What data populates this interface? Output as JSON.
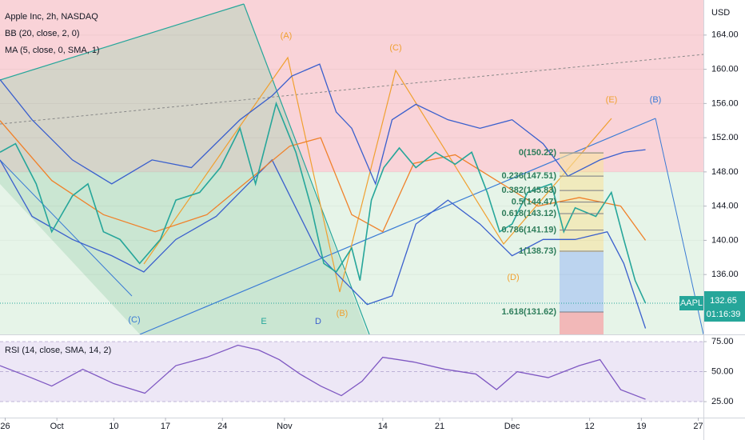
{
  "chart_data": [
    {
      "type": "line",
      "title": "Apple Inc, 2h, NASDAQ",
      "legend": [
        "BB (20, close, 2, 0)",
        "MA (5, close, 0, SMA, 1)"
      ],
      "currency": "USD",
      "ylim": [
        129,
        168.1
      ],
      "xlim": [
        0,
        68
      ],
      "yticks": [
        {
          "value": 136,
          "label": "136.00"
        },
        {
          "value": 140,
          "label": "140.00"
        },
        {
          "value": 144,
          "label": "144.00"
        },
        {
          "value": 148,
          "label": "148.00"
        },
        {
          "value": 152,
          "label": "152.00"
        },
        {
          "value": 156,
          "label": "156.00"
        },
        {
          "value": 160,
          "label": "160.00"
        },
        {
          "value": 164,
          "label": "164.00"
        }
      ],
      "series": [
        {
          "color": "#3a5fcd",
          "x": [
            0,
            3.1,
            7,
            10.8,
            14.7,
            18.5,
            23.2,
            26.3,
            28.2,
            30.9,
            32.5,
            34,
            36.3,
            37.9,
            40.2,
            43.3,
            46.4,
            49.5,
            52.5,
            54.9,
            58,
            60.3,
            62.4
          ],
          "values": [
            158.8,
            154.1,
            149.4,
            146.6,
            149.4,
            148.5,
            154.1,
            156.9,
            159.2,
            160.6,
            155.0,
            153.1,
            146.6,
            154.1,
            155.9,
            154.1,
            153.1,
            154.1,
            151.3,
            147.5,
            149.4,
            150.3,
            150.6
          ]
        },
        {
          "color": "#3a5fcd",
          "x": [
            0,
            3.1,
            7,
            10.8,
            13.9,
            17,
            20.9,
            24,
            26.3,
            28.6,
            30.9,
            33.2,
            35.5,
            37.9,
            40.2,
            43.3,
            46.4,
            49.5,
            52.5,
            55.6,
            58.7,
            60.3,
            62.4
          ],
          "values": [
            149.4,
            142.8,
            140.1,
            138.2,
            136.3,
            140.1,
            142.8,
            146.6,
            149.4,
            143.8,
            138.2,
            135.3,
            132.5,
            133.5,
            141.9,
            144.7,
            141.9,
            138.2,
            140.1,
            140.1,
            141.0,
            137.3,
            129.7
          ]
        },
        {
          "color": "#f0812a",
          "x": [
            0,
            5,
            10,
            15,
            20,
            24,
            28,
            31,
            34,
            37,
            40,
            44,
            48,
            52,
            56,
            60,
            62.4
          ],
          "values": [
            154,
            147,
            143,
            141,
            143,
            147,
            151,
            152,
            143,
            141,
            149,
            150,
            147,
            144,
            145,
            144,
            140
          ]
        },
        {
          "color": "#26a69a",
          "x": [
            0,
            1.5,
            3.5,
            5,
            7,
            8.5,
            10,
            11.6,
            13.5,
            15.5,
            17,
            19.3,
            21.3,
            23.2,
            24.7,
            26.7,
            28.6,
            30.1,
            31.3,
            32.5,
            34,
            34.8,
            35.9,
            37.1,
            38.6,
            40.2,
            42.1,
            44,
            45.6,
            47.1,
            48.3,
            49.5,
            51,
            53.3,
            54.5,
            55.6,
            57.6,
            59.1,
            60.3,
            61.4,
            62.4
          ],
          "values": [
            150.3,
            151.3,
            146.6,
            141.0,
            145.2,
            146.6,
            141.0,
            140.1,
            137.3,
            140.1,
            144.7,
            145.6,
            148.5,
            153.1,
            146.6,
            156.0,
            150.3,
            143.8,
            137.3,
            136.3,
            139.1,
            135.3,
            144.7,
            148.5,
            150.8,
            148.5,
            150.3,
            148.9,
            150.3,
            145.6,
            141.0,
            141.9,
            145.6,
            146.6,
            141.0,
            143.8,
            142.8,
            145.6,
            140.1,
            135.3,
            132.65
          ]
        }
      ],
      "last_price": {
        "symbol": "AAPL",
        "value": 132.65,
        "label": "132.65",
        "countdown": "01:16:39"
      },
      "fib_levels": [
        {
          "label": "0(150.22)",
          "value": 150.22
        },
        {
          "label": "0.236(147.51)",
          "value": 147.51
        },
        {
          "label": "0.382(145.83)",
          "value": 145.83
        },
        {
          "label": "0.5(144.47)",
          "value": 144.47
        },
        {
          "label": "0.618(143.12)",
          "value": 143.12
        },
        {
          "label": "0.786(141.19)",
          "value": 141.19
        },
        {
          "label": "1(138.73)",
          "value": 138.73
        },
        {
          "label": "1.618(131.62)",
          "value": 131.62
        }
      ],
      "wave_labels": [
        "(A)",
        "(C)",
        "(E)",
        "(B)",
        "(D)",
        "(B)",
        "(C)",
        "E",
        "D"
      ]
    },
    {
      "type": "line",
      "title": "RSI (14, close, SMA, 14, 2)",
      "ylim": [
        11.7,
        79.7
      ],
      "xlim": [
        0,
        68
      ],
      "yticks": [
        {
          "value": 25,
          "label": "25.00"
        },
        {
          "value": 50,
          "label": "50.00"
        },
        {
          "value": 75,
          "label": "75.00"
        }
      ],
      "xticks": [
        {
          "value": 0.5,
          "label": "26"
        },
        {
          "value": 5.5,
          "label": "Oct"
        },
        {
          "value": 11,
          "label": "10"
        },
        {
          "value": 16,
          "label": "17"
        },
        {
          "value": 21.5,
          "label": "24"
        },
        {
          "value": 27.5,
          "label": "Nov"
        },
        {
          "value": 37,
          "label": "14"
        },
        {
          "value": 42.5,
          "label": "21"
        },
        {
          "value": 49.5,
          "label": "Dec"
        },
        {
          "value": 57,
          "label": "12"
        },
        {
          "value": 62,
          "label": "19"
        },
        {
          "value": 67.5,
          "label": "27"
        }
      ],
      "series": [
        {
          "color": "#7e57c2",
          "x": [
            0,
            3,
            5,
            8,
            11,
            14,
            17,
            20,
            23,
            25,
            27,
            29,
            31,
            33,
            35,
            37,
            40,
            43,
            46,
            48,
            50,
            53,
            56,
            58,
            60,
            62.4
          ],
          "values": [
            55,
            45,
            38,
            52,
            40,
            32,
            55,
            62,
            72,
            68,
            60,
            48,
            38,
            30,
            42,
            62,
            58,
            52,
            48,
            35,
            50,
            45,
            55,
            60,
            35,
            27
          ]
        }
      ]
    }
  ]
}
